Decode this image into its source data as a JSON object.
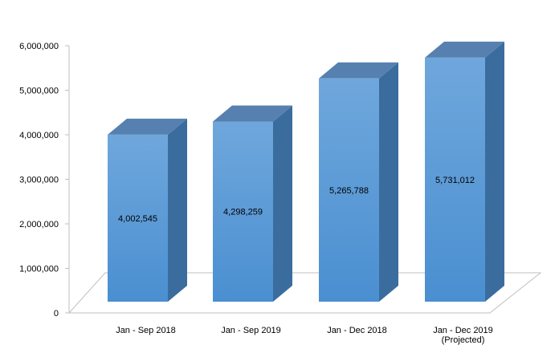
{
  "chart_data": {
    "type": "bar",
    "three_d": true,
    "categories": [
      [
        "Jan - Sep 2018"
      ],
      [
        "Jan - Sep 2019"
      ],
      [
        "Jan - Dec 2018"
      ],
      [
        "Jan - Dec 2019",
        "(Projected)"
      ]
    ],
    "values": [
      4002545,
      4298259,
      5265788,
      5731012
    ],
    "data_labels": [
      "4,002,545",
      "4,298,259",
      "5,265,788",
      "5,731,012"
    ],
    "yticks": [
      0,
      1000000,
      2000000,
      3000000,
      4000000,
      5000000,
      6000000
    ],
    "ytick_labels": [
      "0",
      "1,000,000",
      "2,000,000",
      "3,000,000",
      "4,000,000",
      "5,000,000",
      "6,000,000"
    ],
    "ylim": [
      0,
      6000000
    ],
    "grid": false,
    "legend": "none",
    "colors": {
      "front_top": "#6fa7dc",
      "front_bottom": "#4a8fd1",
      "side": "#3a6d9e",
      "top": "#5680b0",
      "floor_line": "#bfbfbf",
      "axis_line": "#bfbfbf",
      "text": "#000000"
    }
  }
}
